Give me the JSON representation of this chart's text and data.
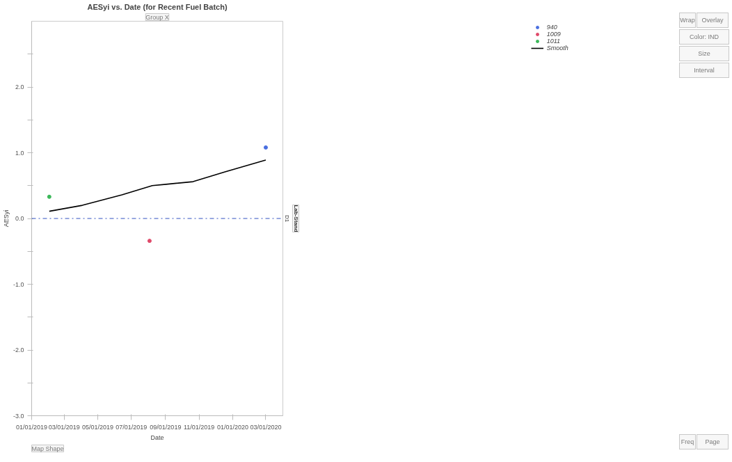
{
  "chart_data": {
    "type": "scatter",
    "title": "AESyi vs. Date (for Recent Fuel Batch)",
    "xlabel": "Date",
    "ylabel": "AESyi",
    "xlim": [
      "2019-01-01",
      "2020-04-01"
    ],
    "ylim": [
      -3,
      3
    ],
    "xticks": [
      {
        "value": "2019-01-01",
        "label": "01/01/2019"
      },
      {
        "value": "2019-03-01",
        "label": "03/01/2019"
      },
      {
        "value": "2019-05-01",
        "label": "05/01/2019"
      },
      {
        "value": "2019-07-01",
        "label": "07/01/2019"
      },
      {
        "value": "2019-09-01",
        "label": "09/01/2019"
      },
      {
        "value": "2019-11-01",
        "label": "11/01/2019"
      },
      {
        "value": "2020-01-01",
        "label": "01/01/2020"
      },
      {
        "value": "2020-03-01",
        "label": "03/01/2020"
      }
    ],
    "yticks": [
      {
        "value": -3,
        "label": "-3.0"
      },
      {
        "value": -2.5,
        "label": null
      },
      {
        "value": -2,
        "label": "-2.0"
      },
      {
        "value": -1.5,
        "label": null
      },
      {
        "value": -1,
        "label": "-1.0"
      },
      {
        "value": -0.5,
        "label": null
      },
      {
        "value": 0,
        "label": "0.0"
      },
      {
        "value": 0.5,
        "label": null
      },
      {
        "value": 1,
        "label": "1.0"
      },
      {
        "value": 1.5,
        "label": null
      },
      {
        "value": 2,
        "label": "2.0"
      },
      {
        "value": 2.5,
        "label": null
      }
    ],
    "grid": false,
    "legend": "right",
    "series": [
      {
        "name": "940",
        "marker": "circle",
        "color": "#4a6fe0",
        "x": [
          "2020-03-01"
        ],
        "values": [
          1.08
        ]
      },
      {
        "name": "1009",
        "marker": "circle",
        "color": "#e04a6a",
        "x": [
          "2019-08-03"
        ],
        "values": [
          -0.34
        ]
      },
      {
        "name": "1011",
        "marker": "circle",
        "color": "#3cb85a",
        "x": [
          "2019-02-02"
        ],
        "values": [
          0.33
        ]
      },
      {
        "name": "Smooth",
        "type": "line",
        "color": "#000000",
        "line_style": "solid",
        "x": [
          "2019-02-02",
          "2019-04-03",
          "2019-06-14",
          "2019-08-08",
          "2019-09-02",
          "2019-10-21",
          "2019-12-18",
          "2020-03-01"
        ],
        "values": [
          0.11,
          0.2,
          0.36,
          0.5,
          0.52,
          0.56,
          0.71,
          0.89
        ]
      }
    ],
    "ref_lines": [
      {
        "axis": "y",
        "value": 0,
        "color": "#3050c0",
        "line_style": "dashdot"
      }
    ],
    "annotations": [
      "Group X",
      "Wrap",
      "Overlay",
      "Color: IND",
      "Size",
      "Interval",
      "Map Shape",
      "Freq",
      "Page",
      "Lab-Stand",
      "D1"
    ]
  }
}
